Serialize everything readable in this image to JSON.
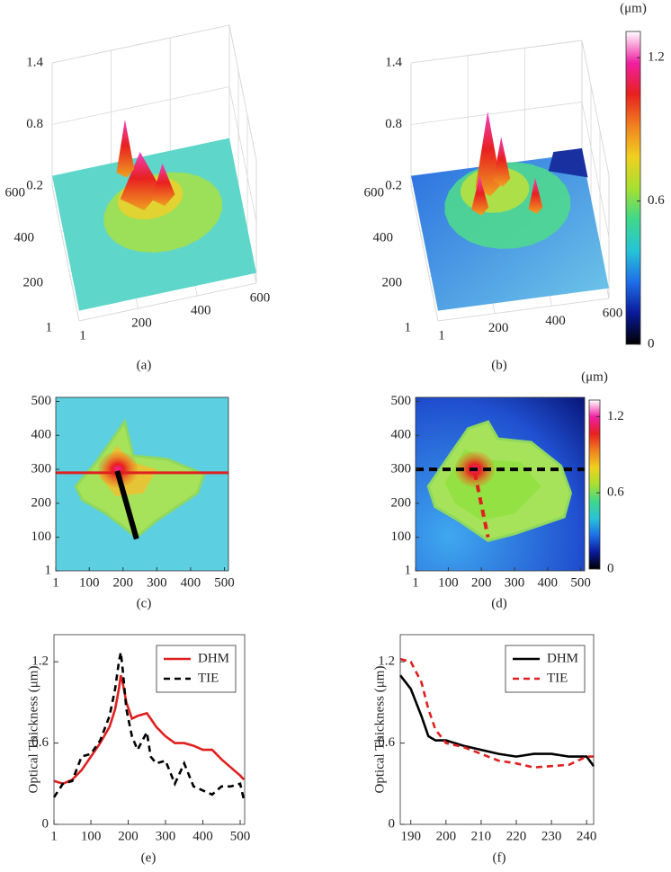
{
  "chart_data": [
    {
      "type": "surface",
      "caption": "(a)",
      "xlim": [
        1,
        600
      ],
      "ylim": [
        1,
        600
      ],
      "zlim": [
        0.2,
        1.4
      ],
      "xticks": [
        1,
        200,
        400,
        600
      ],
      "yticks": [
        1,
        200,
        400,
        600
      ],
      "zticks": [
        0.2,
        0.8,
        1.4
      ]
    },
    {
      "type": "surface",
      "caption": "(b)",
      "xlim": [
        1,
        600
      ],
      "ylim": [
        1,
        600
      ],
      "zlim": [
        0.2,
        1.4
      ],
      "xticks": [
        1,
        200,
        400,
        600
      ],
      "yticks": [
        1,
        200,
        400,
        600
      ],
      "zticks": [
        0.2,
        0.8,
        1.4
      ],
      "colorbar": {
        "label": "(μm)",
        "lim": [
          0,
          1.31
        ],
        "ticks": [
          0,
          0.6,
          1.2
        ],
        "colors": [
          "#000000",
          "#0a1a9a",
          "#1f6fe8",
          "#27c4d8",
          "#3fd88a",
          "#a8e030",
          "#f0d020",
          "#f08020",
          "#e82020",
          "#f020a0",
          "#ffffff"
        ]
      }
    },
    {
      "type": "heatmap",
      "caption": "(c)",
      "xlim": [
        1,
        512
      ],
      "ylim": [
        1,
        512
      ],
      "xticks": [
        1,
        100,
        200,
        300,
        400,
        500
      ],
      "yticks": [
        1,
        100,
        200,
        300,
        400,
        500
      ]
    },
    {
      "type": "heatmap",
      "caption": "(d)",
      "xlim": [
        1,
        512
      ],
      "ylim": [
        1,
        512
      ],
      "xticks": [
        1,
        100,
        200,
        300,
        400,
        500
      ],
      "yticks": [
        1,
        100,
        200,
        300,
        400,
        500
      ],
      "colorbar": {
        "label": "(μm)",
        "lim": [
          0,
          1.33
        ],
        "ticks": [
          0,
          0.6,
          1.2
        ],
        "colors": [
          "#000000",
          "#0a1a9a",
          "#1f6fe8",
          "#27c4d8",
          "#3fd88a",
          "#a8e030",
          "#f0d020",
          "#f08020",
          "#e82020",
          "#f020a0",
          "#ffffff"
        ]
      }
    },
    {
      "type": "line",
      "caption": "(e)",
      "ylabel": "Optical Thickness (μm)",
      "x": [
        1,
        25,
        50,
        75,
        100,
        125,
        150,
        165,
        175,
        180,
        185,
        195,
        210,
        225,
        250,
        260,
        275,
        300,
        325,
        350,
        375,
        400,
        425,
        450,
        475,
        500,
        510
      ],
      "series": [
        {
          "name": "DHM",
          "color": "#e02020",
          "dashed": false,
          "values": [
            0.32,
            0.3,
            0.33,
            0.4,
            0.5,
            0.6,
            0.72,
            0.85,
            1.0,
            1.1,
            1.05,
            0.9,
            0.78,
            0.8,
            0.82,
            0.78,
            0.72,
            0.65,
            0.6,
            0.6,
            0.58,
            0.55,
            0.55,
            0.48,
            0.42,
            0.36,
            0.33
          ]
        },
        {
          "name": "TIE",
          "color": "#000000",
          "dashed": true,
          "values": [
            0.2,
            0.3,
            0.32,
            0.5,
            0.52,
            0.62,
            0.8,
            1.0,
            1.2,
            1.27,
            1.15,
            0.85,
            0.65,
            0.55,
            0.68,
            0.5,
            0.45,
            0.47,
            0.3,
            0.45,
            0.28,
            0.25,
            0.22,
            0.28,
            0.28,
            0.3,
            0.18
          ]
        }
      ],
      "xlim": [
        1,
        512
      ],
      "ylim": [
        0,
        1.4
      ],
      "xticks": [
        1,
        100,
        200,
        300,
        400,
        500
      ],
      "yticks": [
        0,
        0.6,
        1.2
      ],
      "legend": "upper right"
    },
    {
      "type": "line",
      "caption": "(f)",
      "ylabel": "Optical Thickness (μm)",
      "x": [
        187,
        190,
        193,
        195,
        197,
        200,
        205,
        210,
        215,
        220,
        225,
        230,
        235,
        240,
        242
      ],
      "series": [
        {
          "name": "DHM",
          "color": "#000000",
          "dashed": false,
          "values": [
            1.1,
            1.0,
            0.8,
            0.65,
            0.62,
            0.62,
            0.58,
            0.55,
            0.52,
            0.5,
            0.52,
            0.52,
            0.5,
            0.5,
            0.43
          ]
        },
        {
          "name": "TIE",
          "color": "#e02020",
          "dashed": true,
          "values": [
            1.22,
            1.2,
            1.05,
            0.85,
            0.7,
            0.6,
            0.57,
            0.52,
            0.47,
            0.45,
            0.42,
            0.43,
            0.44,
            0.5,
            0.5
          ]
        }
      ],
      "xlim": [
        187,
        242
      ],
      "ylim": [
        0,
        1.4
      ],
      "xticks": [
        190,
        200,
        210,
        220,
        230,
        240
      ],
      "yticks": [
        0,
        0.6,
        1.2
      ],
      "legend": "upper right"
    }
  ]
}
